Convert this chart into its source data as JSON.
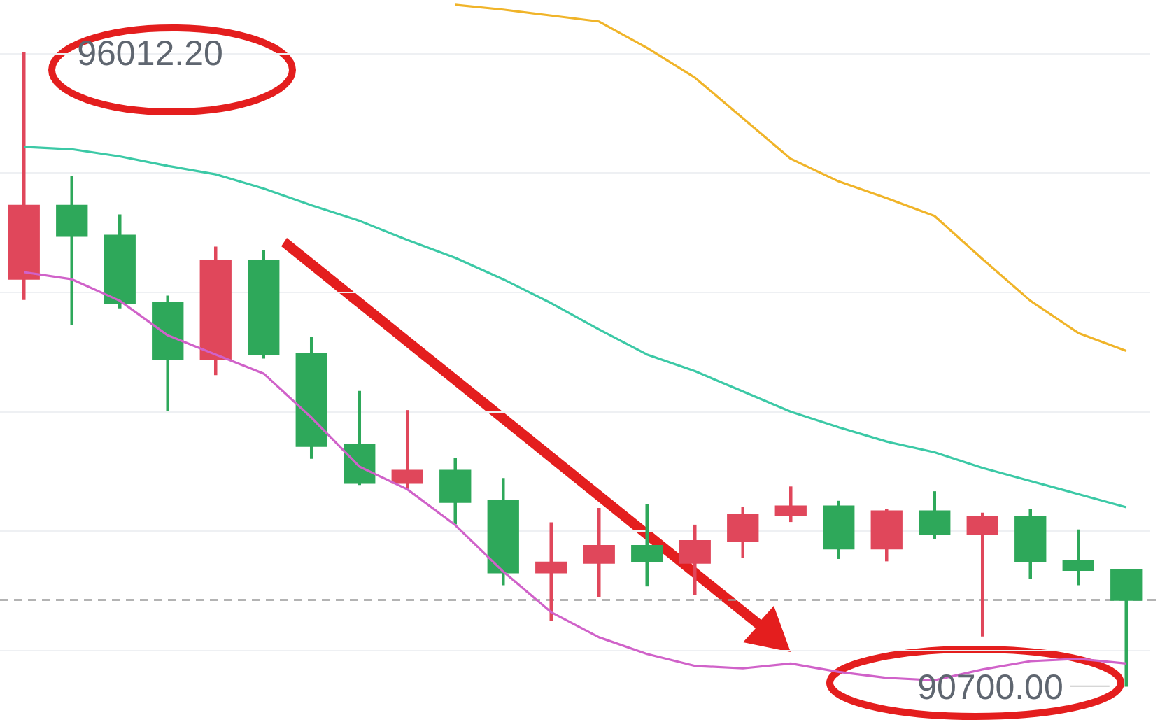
{
  "chart_data": {
    "type": "candlestick",
    "categories": [
      null,
      null,
      null,
      null,
      null,
      null,
      null,
      null,
      null,
      null,
      null,
      null,
      null,
      null,
      null,
      null,
      null,
      null,
      null,
      null,
      null,
      null,
      null,
      null
    ],
    "ohlc": [
      [
        94110,
        96012.2,
        93940,
        94730
      ],
      [
        94730,
        94970,
        93730,
        94470
      ],
      [
        94480,
        94650,
        93870,
        93910
      ],
      [
        93920,
        93970,
        93010,
        93440
      ],
      [
        93440,
        94380,
        93310,
        94270
      ],
      [
        94270,
        94350,
        93450,
        93480
      ],
      [
        93490,
        93620,
        92610,
        92710
      ],
      [
        92730,
        93170,
        92390,
        92400
      ],
      [
        92400,
        93010,
        92350,
        92510
      ],
      [
        92510,
        92610,
        92060,
        92240
      ],
      [
        92260,
        92440,
        91550,
        91650
      ],
      [
        91650,
        92070,
        91250,
        91740
      ],
      [
        91730,
        92190,
        91450,
        91880
      ],
      [
        91880,
        92220,
        91540,
        91740
      ],
      [
        91730,
        92050,
        91470,
        91920
      ],
      [
        91910,
        92200,
        91780,
        92140
      ],
      [
        92130,
        92370,
        92080,
        92210
      ],
      [
        92210,
        92250,
        91770,
        91850
      ],
      [
        91850,
        92180,
        91750,
        92170
      ],
      [
        92170,
        92330,
        91940,
        91970
      ],
      [
        91970,
        92150,
        91120,
        92120
      ],
      [
        92120,
        92180,
        91600,
        91740
      ],
      [
        91750,
        92010,
        91550,
        91670
      ],
      [
        91680,
        91680,
        90700,
        91420
      ]
    ],
    "colors": [
      "#e0475b",
      "#2ea85a",
      "#2ea85a",
      "#2ea85a",
      "#e0475b",
      "#2ea85a",
      "#2ea85a",
      "#2ea85a",
      "#e0475b",
      "#2ea85a",
      "#2ea85a",
      "#e0475b",
      "#e0475b",
      "#2ea85a",
      "#e0475b",
      "#e0475b",
      "#e0475b",
      "#2ea85a",
      "#e0475b",
      "#2ea85a",
      "#e0475b",
      "#2ea85a",
      "#2ea85a",
      "#2ea85a"
    ],
    "series": [
      {
        "type": "line",
        "color": "#f0b429",
        "values": [
          null,
          null,
          null,
          null,
          null,
          null,
          null,
          null,
          null,
          96410,
          96370,
          96320,
          96270,
          96050,
          95800,
          95460,
          95120,
          94930,
          94790,
          94640,
          94280,
          93930,
          93660,
          93510
        ]
      },
      {
        "type": "line",
        "color": "#3cc9a6",
        "values": [
          95220,
          95200,
          95140,
          95060,
          94990,
          94870,
          94730,
          94600,
          94440,
          94290,
          94110,
          93910,
          93690,
          93480,
          93340,
          93170,
          93000,
          92870,
          92750,
          92660,
          92530,
          92420,
          92310,
          92200
        ]
      },
      {
        "type": "line",
        "color": "#d062c9",
        "values": [
          94170,
          94110,
          93930,
          93640,
          93480,
          93320,
          92950,
          92540,
          92350,
          92050,
          91660,
          91320,
          91110,
          90970,
          90870,
          90850,
          90890,
          90820,
          90770,
          90750,
          90840,
          90910,
          90930,
          90890
        ]
      }
    ],
    "yticks": [
      {
        "value": 91000,
        "label": null
      },
      {
        "value": 92000,
        "label": null
      },
      {
        "value": 93000,
        "label": null
      },
      {
        "value": 94000,
        "label": null
      },
      {
        "value": 95000,
        "label": null
      },
      {
        "value": 96000,
        "label": null
      }
    ],
    "grid": "y",
    "tick_labels": false,
    "marker": "none",
    "ref_lines": [
      {
        "axis": "y",
        "value": 91423,
        "color": "#9a9a9a",
        "line_style": "dashed"
      }
    ],
    "annotations": [
      "96012.20",
      "90700.00"
    ]
  }
}
